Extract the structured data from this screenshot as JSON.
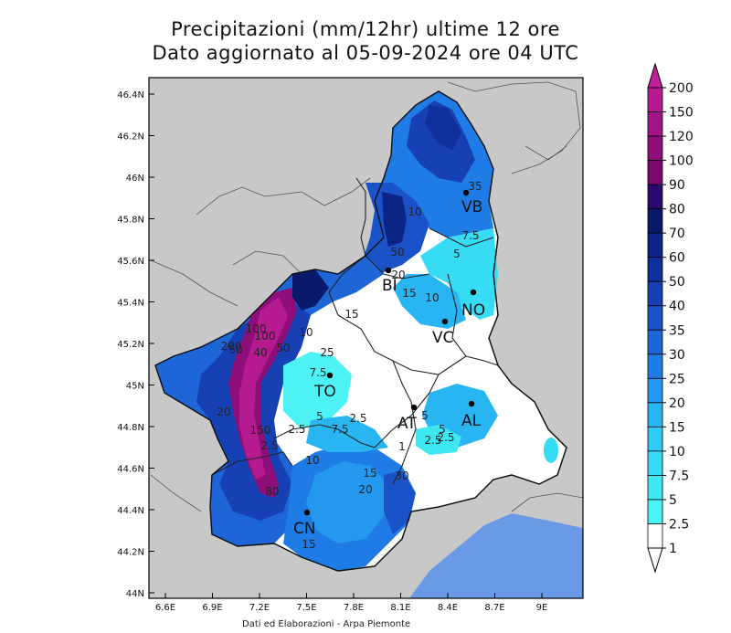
{
  "title_line1": "Precipitazioni (mm/12hr) ultime 12 ore",
  "title_line2": "Dato aggiornato al 05-09-2024 ore 04 UTC",
  "credit": "Dati ed Elaborazioni - Arpa Piemonte",
  "axes": {
    "y_ticks": [
      "46.4N",
      "46.2N",
      "46N",
      "45.8N",
      "45.6N",
      "45.4N",
      "45.2N",
      "45N",
      "44.8N",
      "44.6N",
      "44.4N",
      "44.2N",
      "44N"
    ],
    "x_ticks": [
      "6.6E",
      "6.9E",
      "7.2E",
      "7.5E",
      "7.8E",
      "8.1E",
      "8.4E",
      "8.7E",
      "9E"
    ]
  },
  "colorbar": {
    "levels": [
      "200",
      "150",
      "120",
      "100",
      "90",
      "80",
      "70",
      "60",
      "50",
      "40",
      "35",
      "30",
      "25",
      "20",
      "15",
      "10",
      "7.5",
      "5",
      "2.5",
      "1"
    ],
    "colors": [
      "#c21f9a",
      "#b61a90",
      "#a31586",
      "#8e0f7a",
      "#7a0a6e",
      "#2a0a70",
      "#0a1a6a",
      "#0c2486",
      "#10309c",
      "#1640b4",
      "#1a52c8",
      "#1e66d8",
      "#1f7ce6",
      "#2398ee",
      "#29b4f2",
      "#2fcbf4",
      "#36dcf4",
      "#3ee8f2",
      "#4cf2f4",
      "#ffffff"
    ]
  },
  "cities": [
    {
      "name": "VB"
    },
    {
      "name": "BI"
    },
    {
      "name": "NO"
    },
    {
      "name": "VC"
    },
    {
      "name": "TO"
    },
    {
      "name": "AT"
    },
    {
      "name": "AL"
    },
    {
      "name": "CN"
    }
  ],
  "contour_labels": [
    "35",
    "10",
    "7.5",
    "5",
    "50",
    "20",
    "15",
    "10",
    "15",
    "10",
    "100",
    "50",
    "40",
    "50",
    "25",
    "7.5",
    "2.5",
    "5",
    "7.5",
    "2.5",
    "150",
    "2.5",
    "1",
    "10",
    "15",
    "20",
    "30",
    "80",
    "15",
    "2.5",
    "2.5",
    "5",
    "5",
    "20",
    "100",
    "200"
  ],
  "colors": {
    "background_land": "#c8c8c8",
    "sea": "#6a9ae6",
    "frame": "#000000"
  }
}
